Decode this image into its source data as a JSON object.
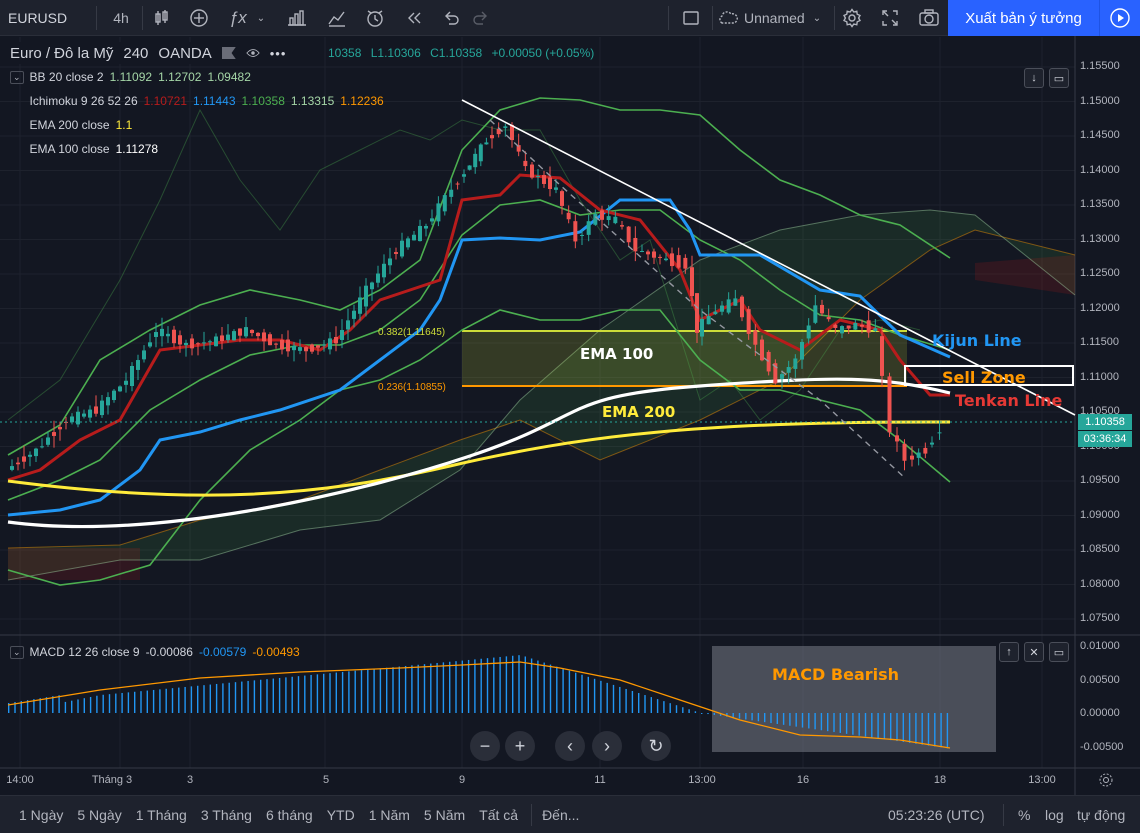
{
  "toolbar": {
    "symbol": "EURUSD",
    "interval": "4h",
    "layout_name": "Unnamed",
    "publish_label": "Xuất bản ý tưởng"
  },
  "symbol_header": {
    "name": "Euro / Đô la Mỹ",
    "interval": "240",
    "exchange": "OANDA",
    "ohlc_partial": "10358",
    "low": "L1.10306",
    "close": "C1.10358",
    "change": "+0.00050 (+0.05%)"
  },
  "indicators": [
    {
      "name": "BB 20 close 2",
      "values": [
        "1.11092",
        "1.12702",
        "1.09482"
      ],
      "colors": [
        "#a5d6a7",
        "#a5d6a7",
        "#a5d6a7"
      ]
    },
    {
      "name": "Ichimoku 9 26 52 26",
      "values": [
        "1.10721",
        "1.11443",
        "1.10358",
        "1.13315",
        "1.12236"
      ],
      "colors": [
        "#b71c1c",
        "#2196f3",
        "#4caf50",
        "#a5d6a7",
        "#ff9800"
      ]
    },
    {
      "name": "EMA 200 close",
      "values": [
        "1.1"
      ],
      "colors": [
        "#ffeb3b"
      ]
    },
    {
      "name": "EMA 100 close",
      "values": [
        "1.11278"
      ],
      "colors": [
        "#ffffff"
      ]
    }
  ],
  "fib_labels": {
    "upper": "0.382(1.11645)",
    "lower": "0.236(1.10855)"
  },
  "annotations": {
    "ema100": "EMA 100",
    "ema200": "EMA 200",
    "kijun": "Kijun Line",
    "sell_zone": "Sell Zone",
    "tenkan": "Tenkan Line",
    "macd_bearish": "MACD Bearish"
  },
  "price_axis": [
    "1.15500",
    "1.15000",
    "1.14500",
    "1.14000",
    "1.13500",
    "1.13000",
    "1.12500",
    "1.12000",
    "1.11500",
    "1.11000",
    "1.10500",
    "1.10000",
    "1.09500",
    "1.09000",
    "1.08500",
    "1.08000",
    "1.07500"
  ],
  "current_price": "1.10358",
  "countdown": "03:36:34",
  "macd": {
    "name": "MACD 12 26 close 9",
    "values": [
      "-0.00086",
      "-0.00579",
      "-0.00493"
    ],
    "colors": [
      "#d1d4dc",
      "#2196f3",
      "#ff9800"
    ],
    "axis": [
      "0.01000",
      "0.00500",
      "0.00000",
      "-0.00500"
    ]
  },
  "time_axis": [
    "14:00",
    "Tháng 3",
    "3",
    "5",
    "9",
    "11",
    "13:00",
    "16",
    "18",
    "13:00"
  ],
  "bottom": {
    "ranges": [
      "1 Ngày",
      "5 Ngày",
      "1 Tháng",
      "3 Tháng",
      "6 tháng",
      "YTD",
      "1 Năm",
      "5 Năm",
      "Tất cả"
    ],
    "goto": "Đến...",
    "clock": "05:23:26 (UTC)",
    "percent": "%",
    "log": "log",
    "auto": "tự động"
  },
  "colors": {
    "bull": "#26a69a",
    "bear": "#ef5350",
    "kijun": "#2196f3",
    "tenkan": "#b71c1c",
    "ema200": "#ffeb3b",
    "ema100": "#ffffff",
    "bb": "#4caf50"
  }
}
